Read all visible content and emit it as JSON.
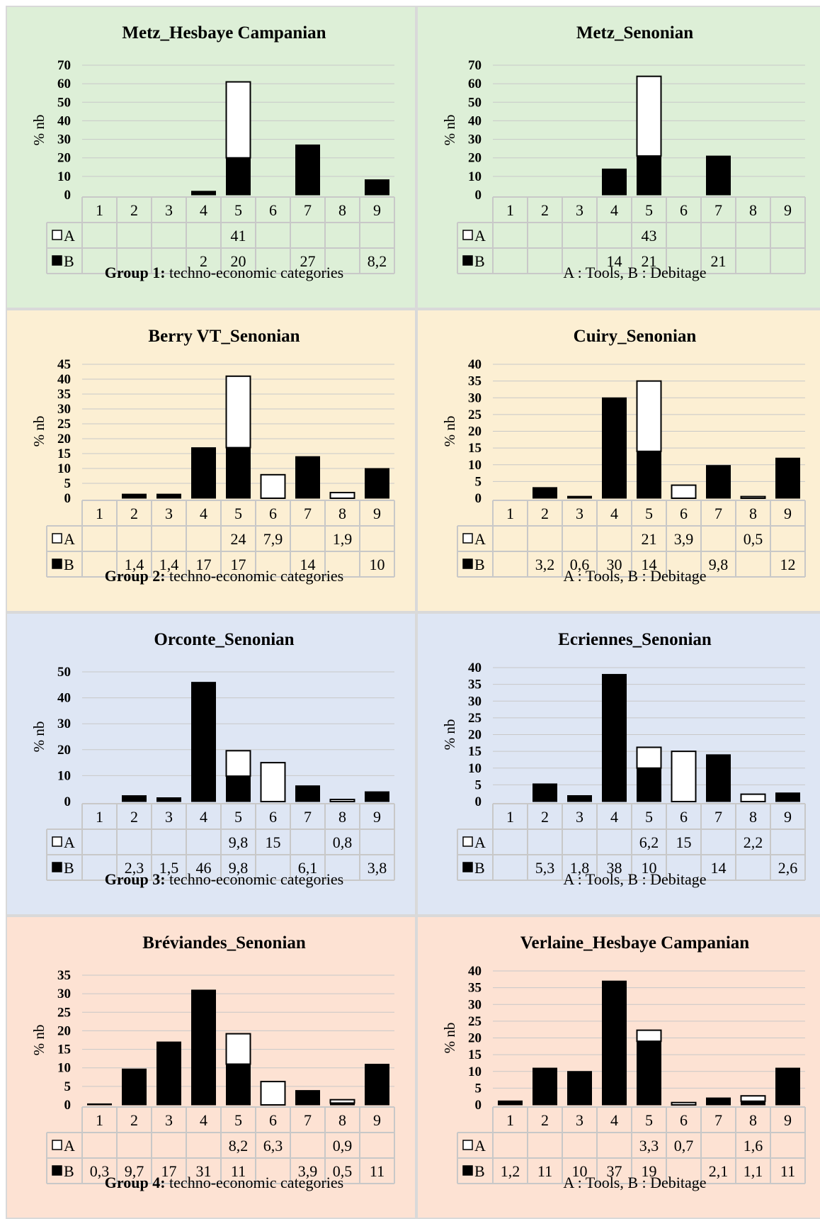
{
  "colors": {
    "group1": "#ddefd7",
    "group2": "#fcefd3",
    "group3": "#dee6f4",
    "group4": "#fde2d3",
    "tools_fill": "#ffffff",
    "debitage_fill": "#000000",
    "gridline": "#c8c8c8",
    "table_border": "#c8c8c8"
  },
  "legend": {
    "a_label": "A",
    "b_label": "B",
    "a_description": "A : Tools, B : Debitage"
  },
  "panels": [
    {
      "group": "group1",
      "caption_bold": "Group 1:",
      "caption_rest": " techno-economic categories",
      "chart_data": {
        "type": "bar",
        "title": "Metz_Hesbaye Campanian",
        "ylabel": "% nb",
        "ylim": [
          0,
          70
        ],
        "yticks": [
          0,
          10,
          20,
          30,
          40,
          50,
          60,
          70
        ],
        "categories": [
          "1",
          "2",
          "3",
          "4",
          "5",
          "6",
          "7",
          "8",
          "9"
        ],
        "series": [
          {
            "name": "A",
            "values": [
              null,
              null,
              null,
              null,
              41,
              null,
              null,
              null,
              null
            ],
            "labels": [
              "",
              "",
              "",
              "",
              "41",
              "",
              "",
              "",
              ""
            ]
          },
          {
            "name": "B",
            "values": [
              null,
              null,
              null,
              2,
              20,
              null,
              27,
              null,
              8.2
            ],
            "labels": [
              "",
              "",
              "",
              "2",
              "20",
              "",
              "27",
              "",
              "8,2"
            ]
          }
        ]
      }
    },
    {
      "group": "group1",
      "caption_bold": "",
      "caption_rest": "A : Tools, B : Debitage",
      "chart_data": {
        "type": "bar",
        "title": "Metz_Senonian",
        "ylabel": "% nb",
        "ylim": [
          0,
          70
        ],
        "yticks": [
          0,
          10,
          20,
          30,
          40,
          50,
          60,
          70
        ],
        "categories": [
          "1",
          "2",
          "3",
          "4",
          "5",
          "6",
          "7",
          "8",
          "9"
        ],
        "series": [
          {
            "name": "A",
            "values": [
              null,
              null,
              null,
              null,
              43,
              null,
              null,
              null,
              null
            ],
            "labels": [
              "",
              "",
              "",
              "",
              "43",
              "",
              "",
              "",
              ""
            ]
          },
          {
            "name": "B",
            "values": [
              null,
              null,
              null,
              14,
              21,
              null,
              21,
              null,
              null
            ],
            "labels": [
              "",
              "",
              "",
              "14",
              "21",
              "",
              "21",
              "",
              ""
            ]
          }
        ]
      }
    },
    {
      "group": "group2",
      "caption_bold": "Group 2:",
      "caption_rest": " techno-economic categories",
      "chart_data": {
        "type": "bar",
        "title": "Berry VT_Senonian",
        "ylabel": "% nb",
        "ylim": [
          0,
          45
        ],
        "yticks": [
          0,
          5,
          10,
          15,
          20,
          25,
          30,
          35,
          40,
          45
        ],
        "categories": [
          "1",
          "2",
          "3",
          "4",
          "5",
          "6",
          "7",
          "8",
          "9"
        ],
        "series": [
          {
            "name": "A",
            "values": [
              null,
              null,
              null,
              null,
              24,
              7.9,
              null,
              1.9,
              null
            ],
            "labels": [
              "",
              "",
              "",
              "",
              "24",
              "7,9",
              "",
              "1,9",
              ""
            ]
          },
          {
            "name": "B",
            "values": [
              null,
              1.4,
              1.4,
              17,
              17,
              null,
              14,
              null,
              10
            ],
            "labels": [
              "",
              "1,4",
              "1,4",
              "17",
              "17",
              "",
              "14",
              "",
              "10"
            ]
          }
        ]
      }
    },
    {
      "group": "group2",
      "caption_bold": "",
      "caption_rest": "A : Tools, B : Debitage",
      "chart_data": {
        "type": "bar",
        "title": "Cuiry_Senonian",
        "ylabel": "% nb",
        "ylim": [
          0,
          40
        ],
        "yticks": [
          0,
          5,
          10,
          15,
          20,
          25,
          30,
          35,
          40
        ],
        "categories": [
          "1",
          "2",
          "3",
          "4",
          "5",
          "6",
          "7",
          "8",
          "9"
        ],
        "series": [
          {
            "name": "A",
            "values": [
              null,
              null,
              null,
              null,
              21,
              3.9,
              null,
              0.5,
              null
            ],
            "labels": [
              "",
              "",
              "",
              "",
              "21",
              "3,9",
              "",
              "0,5",
              ""
            ]
          },
          {
            "name": "B",
            "values": [
              null,
              3.2,
              0.6,
              30,
              14,
              null,
              9.8,
              null,
              12
            ],
            "labels": [
              "",
              "3,2",
              "0,6",
              "30",
              "14",
              "",
              "9,8",
              "",
              "12"
            ]
          }
        ]
      }
    },
    {
      "group": "group3",
      "caption_bold": "Group 3:",
      "caption_rest": " techno-economic categories",
      "chart_data": {
        "type": "bar",
        "title": "Orconte_Senonian",
        "ylabel": "% nb",
        "ylim": [
          0,
          50
        ],
        "yticks": [
          0,
          10,
          20,
          30,
          40,
          50
        ],
        "categories": [
          "1",
          "2",
          "3",
          "4",
          "5",
          "6",
          "7",
          "8",
          "9"
        ],
        "series": [
          {
            "name": "A",
            "values": [
              null,
              null,
              null,
              null,
              9.8,
              15,
              null,
              0.8,
              null
            ],
            "labels": [
              "",
              "",
              "",
              "",
              "9,8",
              "15",
              "",
              "0,8",
              ""
            ]
          },
          {
            "name": "B",
            "values": [
              null,
              2.3,
              1.5,
              46,
              9.8,
              null,
              6.1,
              null,
              3.8
            ],
            "labels": [
              "",
              "2,3",
              "1,5",
              "46",
              "9,8",
              "",
              "6,1",
              "",
              "3,8"
            ]
          }
        ]
      }
    },
    {
      "group": "group3",
      "caption_bold": "",
      "caption_rest": "A : Tools, B : Debitage",
      "chart_data": {
        "type": "bar",
        "title": "Ecriennes_Senonian",
        "ylabel": "% nb",
        "ylim": [
          0,
          40
        ],
        "yticks": [
          0,
          5,
          10,
          15,
          20,
          25,
          30,
          35,
          40
        ],
        "categories": [
          "1",
          "2",
          "3",
          "4",
          "5",
          "6",
          "7",
          "8",
          "9"
        ],
        "series": [
          {
            "name": "A",
            "values": [
              null,
              null,
              null,
              null,
              6.2,
              15,
              null,
              2.2,
              null
            ],
            "labels": [
              "",
              "",
              "",
              "",
              "6,2",
              "15",
              "",
              "2,2",
              ""
            ]
          },
          {
            "name": "B",
            "values": [
              null,
              5.3,
              1.8,
              38,
              10,
              null,
              14,
              null,
              2.6
            ],
            "labels": [
              "",
              "5,3",
              "1,8",
              "38",
              "10",
              "",
              "14",
              "",
              "2,6"
            ]
          }
        ]
      }
    },
    {
      "group": "group4",
      "caption_bold": "Group 4:",
      "caption_rest": " techno-economic categories",
      "chart_data": {
        "type": "bar",
        "title": "Bréviandes_Senonian",
        "ylabel": "% nb",
        "ylim": [
          0,
          35
        ],
        "yticks": [
          0,
          5,
          10,
          15,
          20,
          25,
          30,
          35
        ],
        "categories": [
          "1",
          "2",
          "3",
          "4",
          "5",
          "6",
          "7",
          "8",
          "9"
        ],
        "series": [
          {
            "name": "A",
            "values": [
              null,
              null,
              null,
              null,
              8.2,
              6.3,
              null,
              0.9,
              null
            ],
            "labels": [
              "",
              "",
              "",
              "",
              "8,2",
              "6,3",
              "",
              "0,9",
              ""
            ]
          },
          {
            "name": "B",
            "values": [
              0.3,
              9.7,
              17,
              31,
              11,
              null,
              3.9,
              0.5,
              11
            ],
            "labels": [
              "0,3",
              "9,7",
              "17",
              "31",
              "11",
              "",
              "3,9",
              "0,5",
              "11"
            ]
          }
        ]
      }
    },
    {
      "group": "group4",
      "caption_bold": "",
      "caption_rest": "A : Tools, B : Debitage",
      "chart_data": {
        "type": "bar",
        "title": "Verlaine_Hesbaye Campanian",
        "ylabel": "% nb",
        "ylim": [
          0,
          40
        ],
        "yticks": [
          0,
          5,
          10,
          15,
          20,
          25,
          30,
          35,
          40
        ],
        "categories": [
          "1",
          "2",
          "3",
          "4",
          "5",
          "6",
          "7",
          "8",
          "9"
        ],
        "series": [
          {
            "name": "A",
            "values": [
              null,
              null,
              null,
              null,
              3.3,
              0.7,
              null,
              1.6,
              null
            ],
            "labels": [
              "",
              "",
              "",
              "",
              "3,3",
              "0,7",
              "",
              "1,6",
              ""
            ]
          },
          {
            "name": "B",
            "values": [
              1.2,
              11,
              10,
              37,
              19,
              null,
              2.1,
              1.1,
              11
            ],
            "labels": [
              "1,2",
              "11",
              "10",
              "37",
              "19",
              "",
              "2,1",
              "1,1",
              "11"
            ]
          }
        ]
      }
    }
  ]
}
